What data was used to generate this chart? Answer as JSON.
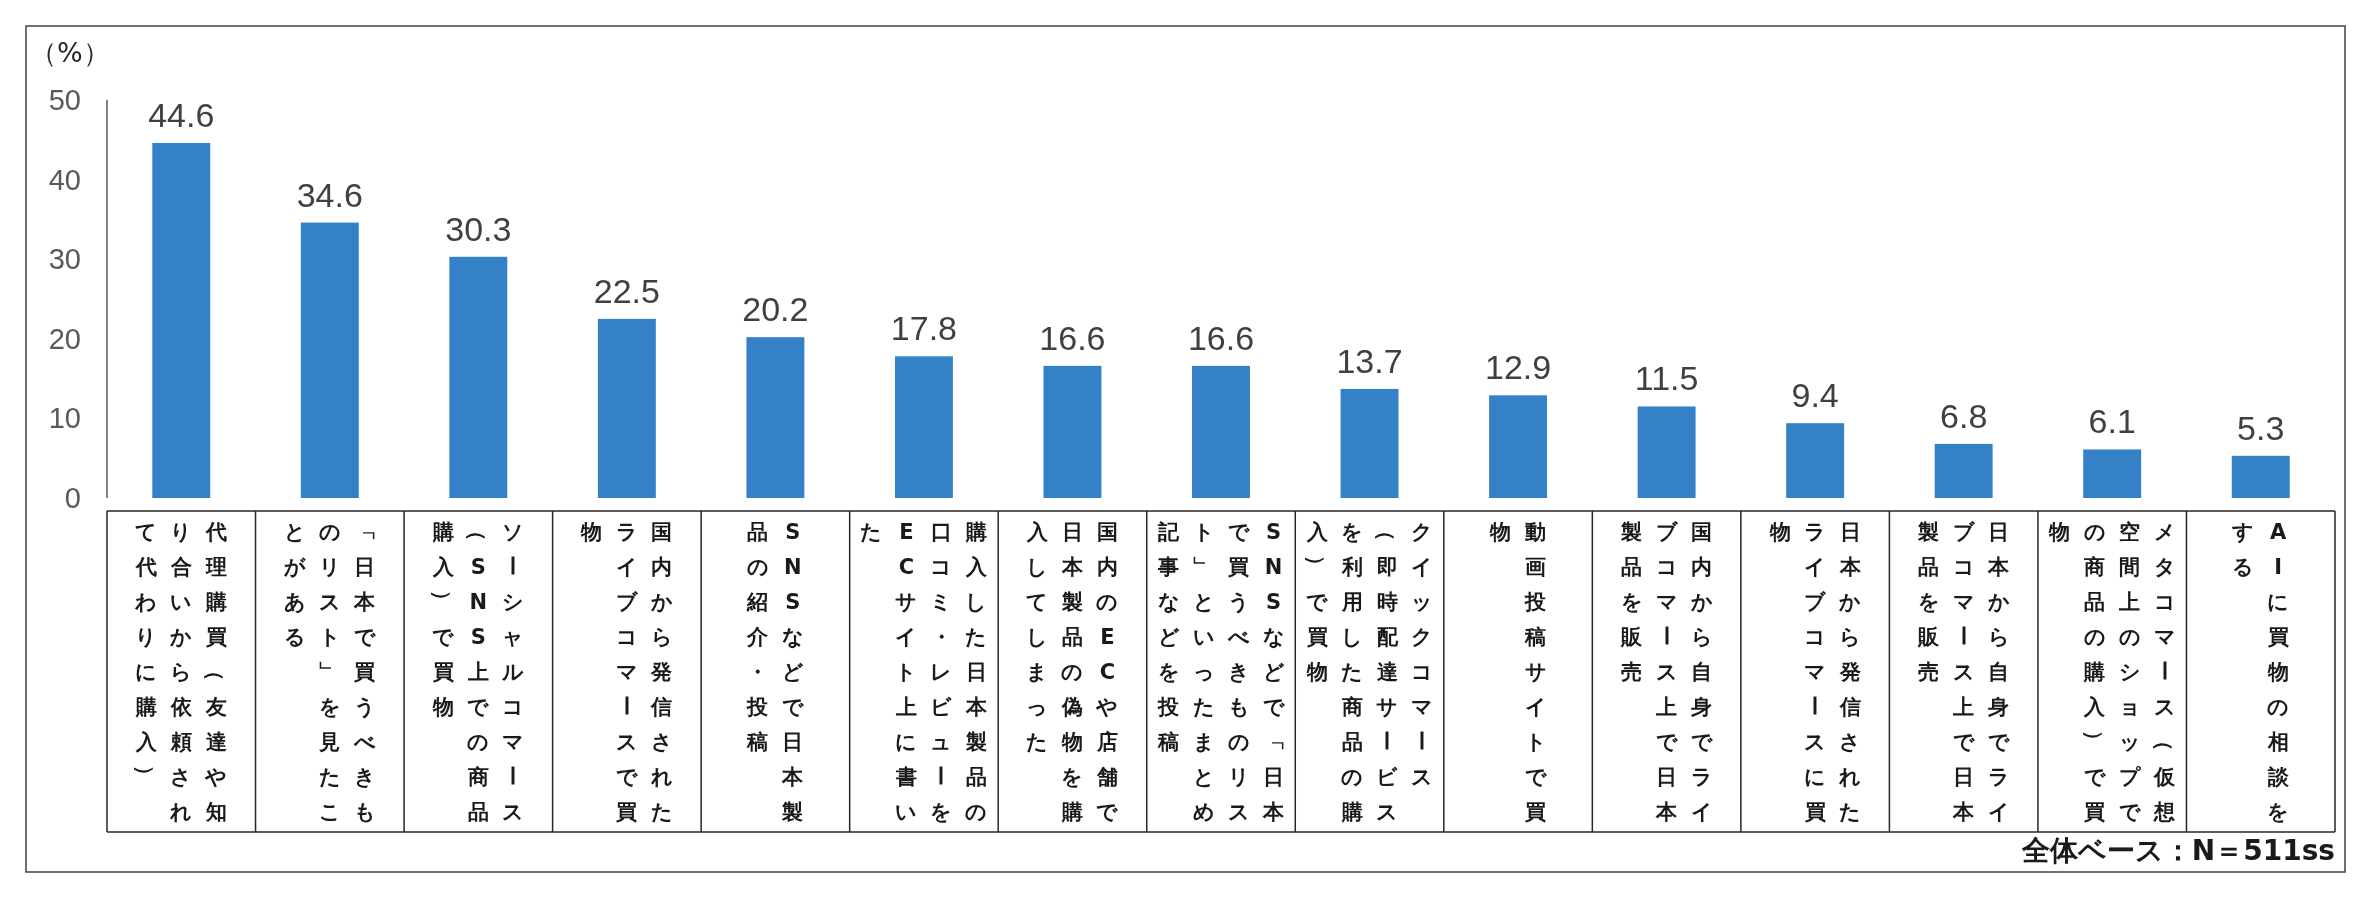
{
  "chart_data": {
    "type": "bar",
    "ylabel": "（%）",
    "categories": [
      "代理購買（友達や知り合いから依頼されて代わりに購入）",
      "「日本で買うべきものリスト」を見たことがある",
      "ソーシャルコマース（SNS上での商品購入）で買物",
      "国内から発信されたライブコマースで買物",
      "SNSなどで日本製品の紹介・投稿",
      "購入した日本製品の口コミ・レビューをECサイト上に書いた",
      "国内のECや店舗で日本製品の偽物を購入してしまった",
      "SNSなどで「日本で買うべきものリスト」といったまとめ記事などを投稿",
      "クイックコマース（即時配達サービスを利用した商品の購入）で買物",
      "動画投稿サイトで買物",
      "国内から自身でライブコマース上で日本製品を販売",
      "日本から発信されたライブコマースに買物",
      "日本から自身でライブコマース上で日本製品を販売",
      "メタコマース（仮想空間上のショップでの商品の購入）で買物",
      "AIに買物の相談をする"
    ],
    "values": [
      44.6,
      34.6,
      30.3,
      22.5,
      20.2,
      17.8,
      16.6,
      16.6,
      13.7,
      12.9,
      11.5,
      9.4,
      6.8,
      6.1,
      5.3
    ],
    "color": "#3481c7",
    "ylim": [
      0,
      50
    ],
    "yticks": [
      0,
      10,
      20,
      30,
      40,
      50
    ],
    "data_labels": true,
    "annotations": [
      "全体ベース：N＝511ss"
    ]
  }
}
